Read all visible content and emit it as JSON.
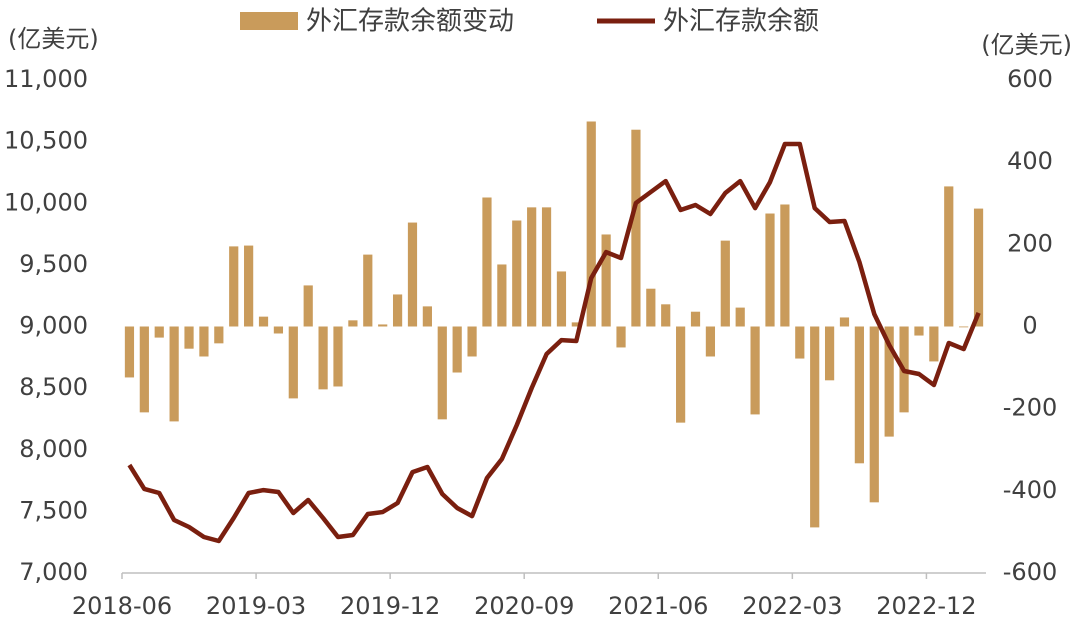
{
  "chart_data": {
    "type": "combo",
    "y_label": "(亿美元)",
    "y2_label": "(亿美元)",
    "legend": "top",
    "categories": [
      "2018-06",
      null,
      null,
      null,
      null,
      null,
      null,
      null,
      null,
      "2019-03",
      null,
      null,
      null,
      null,
      null,
      null,
      null,
      null,
      "2019-12",
      null,
      null,
      null,
      null,
      null,
      null,
      null,
      null,
      "2020-09",
      null,
      null,
      null,
      null,
      null,
      null,
      null,
      null,
      "2021-06",
      null,
      null,
      null,
      null,
      null,
      null,
      null,
      null,
      "2022-03",
      null,
      null,
      null,
      null,
      null,
      null,
      null,
      null,
      "2022-12",
      null,
      null,
      null
    ],
    "series": [
      {
        "name": "外汇存款余额变动",
        "type": "bar",
        "axis": "y2",
        "color": "#c99b5b",
        "values": [
          -124,
          -209,
          -27,
          -231,
          -54,
          -73,
          -41,
          195,
          197,
          24,
          -17,
          -175,
          100,
          -153,
          -146,
          15,
          175,
          5,
          78,
          253,
          49,
          -226,
          -112,
          -73,
          314,
          151,
          258,
          290,
          290,
          134,
          10,
          499,
          224,
          -51,
          479,
          92,
          54,
          -234,
          36,
          -73,
          209,
          46,
          -214,
          275,
          297,
          -78,
          -489,
          -131,
          22,
          -333,
          -428,
          -268,
          -209,
          -22,
          -85,
          341,
          -2,
          287
        ]
      },
      {
        "name": "外汇存款余额",
        "type": "line",
        "color": "#7a1f0f",
        "values": [
          7876,
          7682,
          7649,
          7430,
          7373,
          7292,
          7260,
          7446,
          7649,
          7673,
          7657,
          7487,
          7592,
          7446,
          7292,
          7308,
          7479,
          7495,
          7568,
          7819,
          7860,
          7641,
          7527,
          7462,
          7771,
          7925,
          8201,
          8501,
          8777,
          8890,
          8882,
          9393,
          9604,
          9556,
          10002,
          10091,
          10180,
          9945,
          9986,
          9913,
          10083,
          10180,
          9961,
          10172,
          10481,
          10481,
          9961,
          9848,
          9856,
          9523,
          9101,
          8850,
          8639,
          8615,
          8525,
          8866,
          8817,
          9110
        ]
      }
    ],
    "ylim": [
      7000,
      11000
    ],
    "yticks": [
      {
        "value": 7000,
        "label": "7,000"
      },
      {
        "value": 7500,
        "label": "7,500"
      },
      {
        "value": 8000,
        "label": "8,000"
      },
      {
        "value": 8500,
        "label": "8,500"
      },
      {
        "value": 9000,
        "label": "9,000"
      },
      {
        "value": 9500,
        "label": "9,500"
      },
      {
        "value": 10000,
        "label": "10,000"
      },
      {
        "value": 10500,
        "label": "10,500"
      },
      {
        "value": 11000,
        "label": "11,000"
      }
    ],
    "y2lim": [
      -600,
      600
    ],
    "y2ticks": [
      -600,
      -400,
      -200,
      0,
      200,
      400,
      600
    ]
  }
}
